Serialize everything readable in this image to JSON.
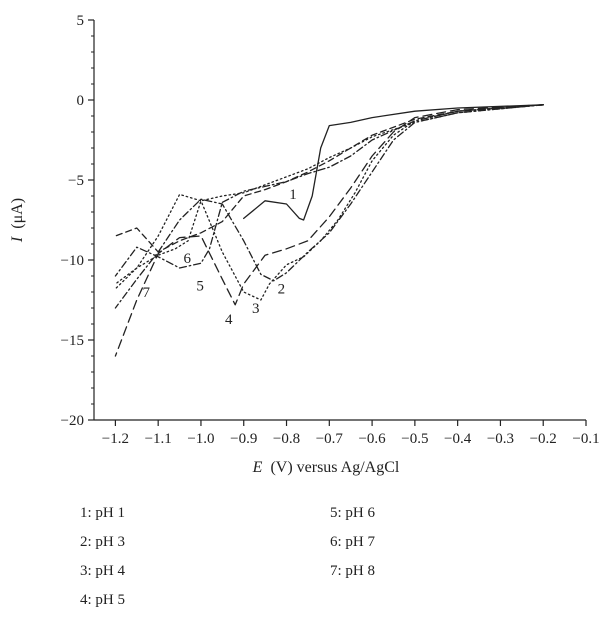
{
  "chart_data": {
    "type": "line",
    "xlabel_var": "E",
    "xlabel_unit": "(V) versus Ag/AgCl",
    "ylabel_var": "I",
    "ylabel_unit": "(μA)",
    "xlim": [
      -1.25,
      -0.1
    ],
    "ylim": [
      -20,
      5
    ],
    "xticks": [
      -1.2,
      -1.1,
      -1.0,
      -0.9,
      -0.8,
      -0.7,
      -0.6,
      -0.5,
      -0.4,
      -0.3,
      -0.2,
      -0.1
    ],
    "xtick_labels": [
      "−1.2",
      "−1.1",
      "−1.0",
      "−0.9",
      "−0.8",
      "−0.7",
      "−0.6",
      "−0.5",
      "−0.4",
      "−0.3",
      "−0.2",
      "−0.1"
    ],
    "yticks": [
      5,
      0,
      -5,
      -10,
      -15,
      -20
    ],
    "ytick_labels": [
      "5",
      "0",
      "−5",
      "−10",
      "−15",
      "−20"
    ],
    "grid": false,
    "series": [
      {
        "name": "1: pH 1",
        "label": "1",
        "style": "solid",
        "x": [
          -0.2,
          -0.4,
          -0.5,
          -0.6,
          -0.65,
          -0.7,
          -0.72,
          -0.74,
          -0.76,
          -0.77,
          -0.8,
          -0.85,
          -0.9
        ],
        "y": [
          -0.3,
          -0.5,
          -0.7,
          -1.1,
          -1.4,
          -1.6,
          -3,
          -6,
          -7.5,
          -7.4,
          -6.5,
          -6.3,
          -7.4
        ]
      },
      {
        "name": "2: pH 3",
        "label": "2",
        "style": "dashdot",
        "x": [
          -0.2,
          -0.4,
          -0.5,
          -0.55,
          -0.6,
          -0.65,
          -0.7,
          -0.75,
          -0.8,
          -0.83,
          -0.86,
          -0.9,
          -0.95,
          -1.0,
          -1.05,
          -1.1,
          -1.15,
          -1.2
        ],
        "y": [
          -0.3,
          -0.8,
          -1.4,
          -2.5,
          -4.5,
          -6.5,
          -8.3,
          -9.5,
          -10.8,
          -11.3,
          -10.9,
          -8.8,
          -6.5,
          -6.2,
          -7.5,
          -9.5,
          -11.2,
          -13
        ]
      },
      {
        "name": "3: pH 4",
        "label": "3",
        "style": "dotted",
        "x": [
          -0.2,
          -0.4,
          -0.5,
          -0.55,
          -0.6,
          -0.64,
          -0.68,
          -0.72,
          -0.76,
          -0.8,
          -0.84,
          -0.86,
          -0.9,
          -0.95,
          -1.0,
          -1.05,
          -1.1,
          -1.15,
          -1.2
        ],
        "y": [
          -0.3,
          -0.7,
          -1.3,
          -2.2,
          -3.8,
          -5.8,
          -7.5,
          -8.8,
          -9.8,
          -10.3,
          -11.5,
          -12.5,
          -12,
          -9.5,
          -6.3,
          -5.9,
          -8.5,
          -10.5,
          -11.5
        ]
      },
      {
        "name": "4: pH 5",
        "label": "4",
        "style": "longdash",
        "x": [
          -0.2,
          -0.4,
          -0.5,
          -0.55,
          -0.6,
          -0.65,
          -0.7,
          -0.75,
          -0.8,
          -0.85,
          -0.9,
          -0.92,
          -0.95,
          -1.0,
          -1.05,
          -1.1,
          -1.15,
          -1.2
        ],
        "y": [
          -0.3,
          -0.6,
          -1.1,
          -2,
          -3.5,
          -5.5,
          -7.3,
          -8.8,
          -9.3,
          -9.7,
          -11.5,
          -12.8,
          -11.2,
          -8.5,
          -8.6,
          -9.6,
          -12.5,
          -16
        ]
      },
      {
        "name": "5: pH 6",
        "label": "5",
        "style": "dashdot",
        "x": [
          -0.2,
          -0.4,
          -0.5,
          -0.6,
          -0.65,
          -0.7,
          -0.75,
          -0.8,
          -0.85,
          -0.9,
          -0.95,
          -0.98,
          -1.0,
          -1.05,
          -1.1,
          -1.15,
          -1.2
        ],
        "y": [
          -0.3,
          -0.7,
          -1.3,
          -2.5,
          -3.5,
          -4.2,
          -4.6,
          -5.1,
          -5.4,
          -5.7,
          -6.4,
          -9.3,
          -10.2,
          -10.5,
          -9.8,
          -9.2,
          -11
        ]
      },
      {
        "name": "6: pH 7",
        "label": "6",
        "style": "dotted",
        "x": [
          -0.2,
          -0.4,
          -0.5,
          -0.6,
          -0.65,
          -0.7,
          -0.75,
          -0.8,
          -0.85,
          -0.9,
          -0.95,
          -1.0,
          -1.03,
          -1.06,
          -1.1,
          -1.15,
          -1.2
        ],
        "y": [
          -0.3,
          -0.8,
          -1.4,
          -2.3,
          -3.0,
          -3.6,
          -4.3,
          -4.8,
          -5.3,
          -5.8,
          -6.0,
          -6.3,
          -8.8,
          -9.3,
          -9.7,
          -10.5,
          -11.8
        ]
      },
      {
        "name": "7: pH 8",
        "label": "7",
        "style": "dashed",
        "x": [
          -0.2,
          -0.4,
          -0.5,
          -0.6,
          -0.65,
          -0.7,
          -0.75,
          -0.8,
          -0.85,
          -0.9,
          -0.95,
          -1.0,
          -1.05,
          -1.1,
          -1.15,
          -1.2
        ],
        "y": [
          -0.3,
          -0.7,
          -1.2,
          -2.2,
          -3.0,
          -3.8,
          -4.5,
          -5.1,
          -5.6,
          -6.0,
          -7.6,
          -8.3,
          -8.8,
          -9.5,
          -8.0,
          -8.5
        ]
      }
    ],
    "label_positions": [
      {
        "label": "1",
        "x": -0.785,
        "y": -6.2
      },
      {
        "label": "2",
        "x": -0.812,
        "y": -12.1
      },
      {
        "label": "3",
        "x": -0.872,
        "y": -13.3
      },
      {
        "label": "4",
        "x": -0.935,
        "y": -14.0
      },
      {
        "label": "5",
        "x": -1.002,
        "y": -11.9
      },
      {
        "label": "6",
        "x": -1.032,
        "y": -10.2
      },
      {
        "label": "7",
        "x": -1.128,
        "y": -12.3
      }
    ]
  },
  "legend": {
    "left_column": [
      "1: pH 1",
      "2: pH 3",
      "3: pH 4",
      "4: pH 5"
    ],
    "right_column": [
      "5: pH 6",
      "6: pH 7",
      "7: pH 8"
    ]
  }
}
